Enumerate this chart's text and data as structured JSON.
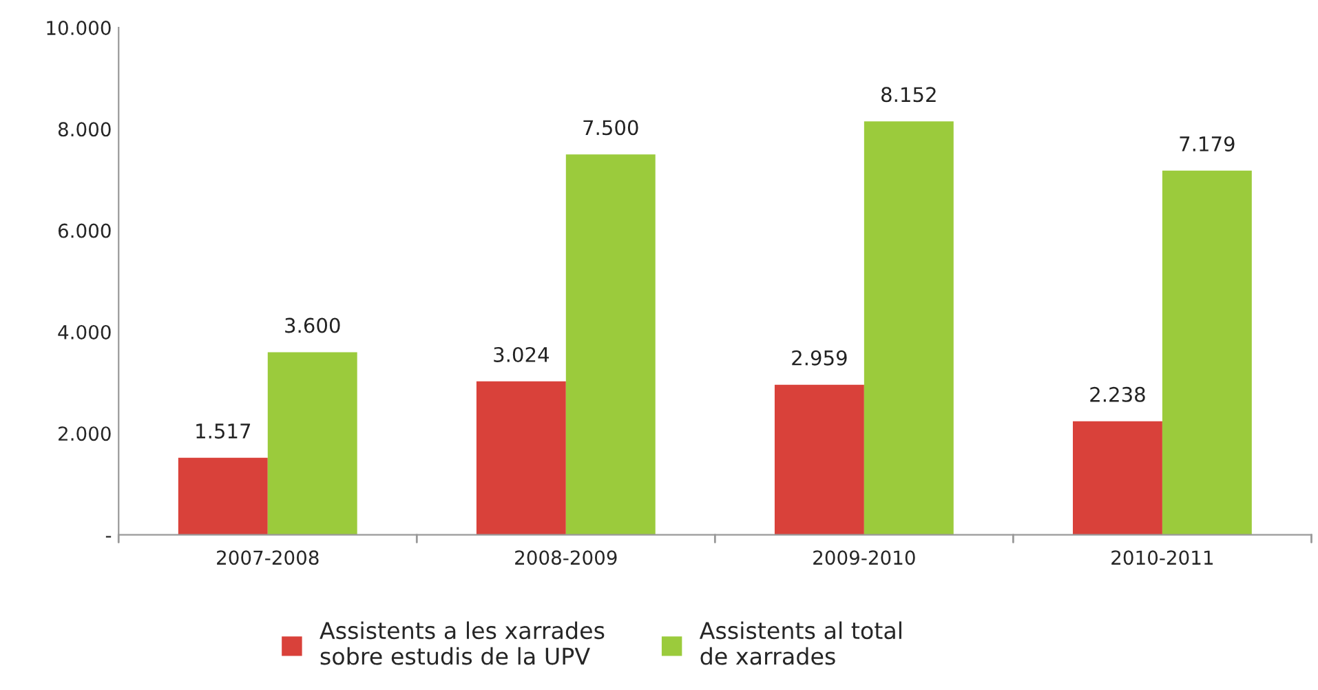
{
  "chart_data": {
    "type": "bar",
    "categories": [
      "2007-2008",
      "2008-2009",
      "2009-2010",
      "2010-2011"
    ],
    "series": [
      {
        "name": "Assistents a les xarrades\nsobre estudis de la UPV",
        "color": "#d9413a",
        "values": [
          1517,
          3024,
          2959,
          2238
        ],
        "value_labels": [
          "1.517",
          "3.024",
          "2.959",
          "2.238"
        ]
      },
      {
        "name": "Assistents al total\nde xarrades",
        "color": "#9bcb3c",
        "values": [
          3600,
          7500,
          8152,
          7179
        ],
        "value_labels": [
          "3.600",
          "7.500",
          "8.152",
          "7.179"
        ]
      }
    ],
    "ylim": [
      0,
      10000
    ],
    "yticks": [
      {
        "value": 0,
        "label": "-"
      },
      {
        "value": 2000,
        "label": "2.000"
      },
      {
        "value": 4000,
        "label": "4.000"
      },
      {
        "value": 6000,
        "label": "6.000"
      },
      {
        "value": 8000,
        "label": "8.000"
      },
      {
        "value": 10000,
        "label": "10.000"
      }
    ],
    "grid": false,
    "legend": "bottom"
  }
}
